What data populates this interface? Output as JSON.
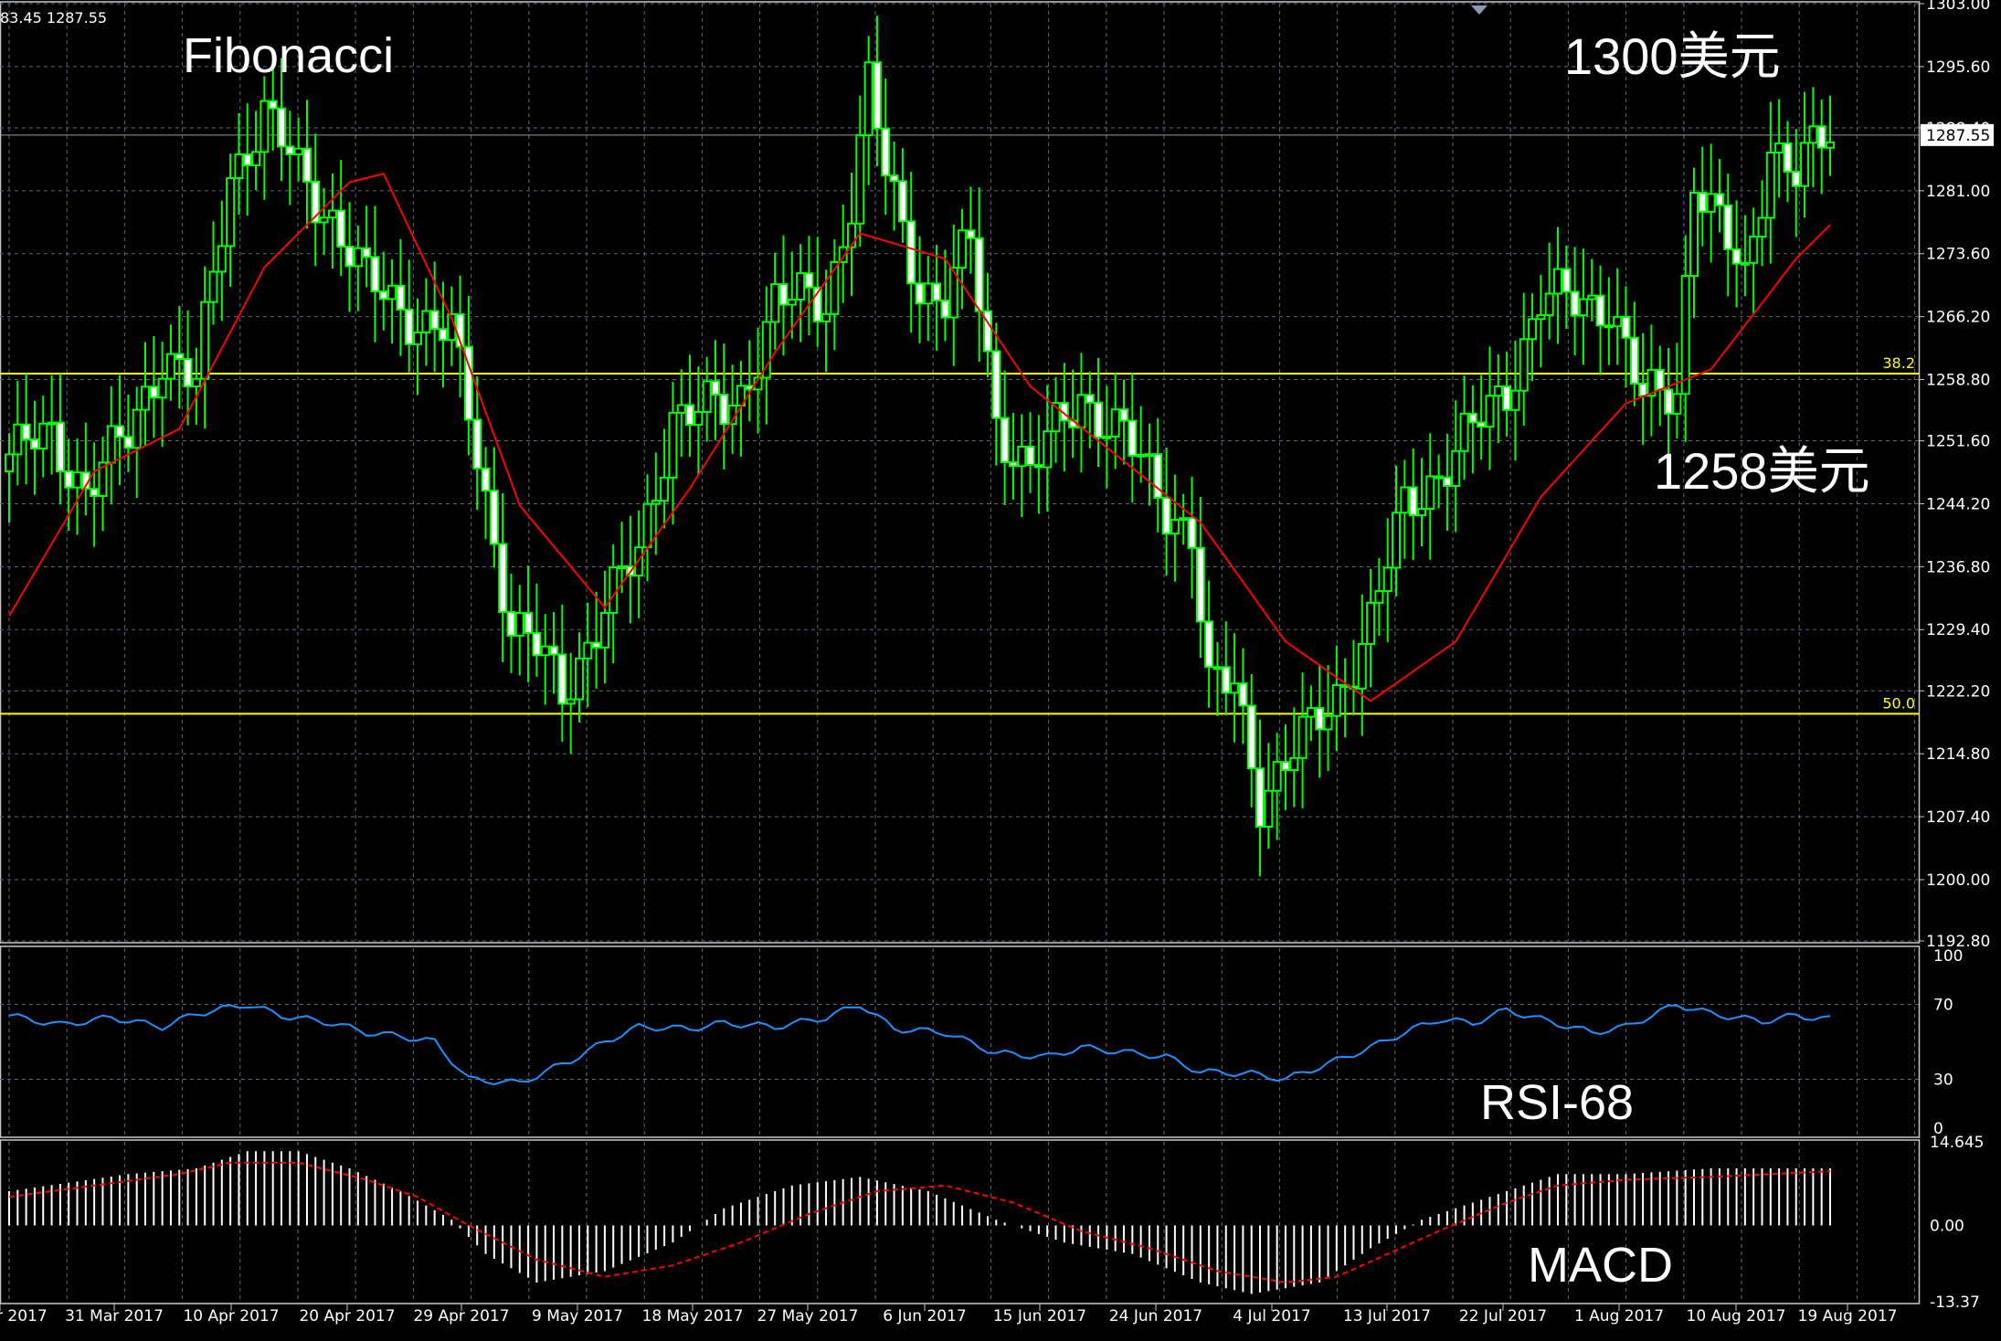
{
  "header": {
    "ohlc_text": "83.45 1287.55"
  },
  "annotations": {
    "fibonacci": "Fibonacci",
    "resistance": "1300美元",
    "support": "1258美元",
    "rsi": "RSI-68",
    "macd": "MACD"
  },
  "colors": {
    "background": "#000000",
    "grid": "#5a6a7a",
    "bull_candle": "#00ff00",
    "bear_candle_body": "#ffffff",
    "moving_average": "#ff0000",
    "fibonacci": "#ffff00",
    "rsi_line": "#1e90ff",
    "macd_hist": "#ffffff",
    "macd_signal": "#ff0000",
    "axis_text": "#ffffff"
  },
  "chart_data": [
    {
      "type": "candlestick",
      "pane": "price",
      "ylim": [
        1192.8,
        1303.0
      ],
      "y_ticks": [
        "1303.00",
        "1295.60",
        "1288.40",
        "1281.00",
        "1273.60",
        "1266.20",
        "1258.80",
        "1251.60",
        "1244.20",
        "1236.80",
        "1229.40",
        "1222.20",
        "1214.80",
        "1207.40",
        "1200.00",
        "1192.80"
      ],
      "current_price": "1287.55",
      "x_labels": [
        "r 2017",
        "31 Mar 2017",
        "10 Apr 2017",
        "20 Apr 2017",
        "29 Apr 2017",
        "9 May 2017",
        "18 May 2017",
        "27 May 2017",
        "6 Jun 2017",
        "15 Jun 2017",
        "24 Jun 2017",
        "4 Jul 2017",
        "13 Jul 2017",
        "22 Jul 2017",
        "1 Aug 2017",
        "10 Aug 2017",
        "19 Aug 2017"
      ],
      "fibonacci_levels": [
        {
          "label": "38.2",
          "price": 1259.5
        },
        {
          "label": "50.0",
          "price": 1219.5
        }
      ],
      "moving_average_anchors": [
        [
          0,
          1231
        ],
        [
          10,
          1248
        ],
        [
          20,
          1253
        ],
        [
          30,
          1272
        ],
        [
          40,
          1282
        ],
        [
          44,
          1283
        ],
        [
          52,
          1266
        ],
        [
          60,
          1244
        ],
        [
          70,
          1232
        ],
        [
          80,
          1246
        ],
        [
          90,
          1262
        ],
        [
          100,
          1276
        ],
        [
          110,
          1273
        ],
        [
          120,
          1258
        ],
        [
          130,
          1250
        ],
        [
          140,
          1242
        ],
        [
          150,
          1228
        ],
        [
          160,
          1221
        ],
        [
          170,
          1228
        ],
        [
          180,
          1245
        ],
        [
          190,
          1256
        ],
        [
          200,
          1260
        ],
        [
          210,
          1273
        ],
        [
          214,
          1277
        ]
      ],
      "candle_anchors": [
        [
          0,
          1250
        ],
        [
          5,
          1252
        ],
        [
          9,
          1246
        ],
        [
          14,
          1252
        ],
        [
          18,
          1262
        ],
        [
          22,
          1258
        ],
        [
          26,
          1283
        ],
        [
          30,
          1290
        ],
        [
          34,
          1283
        ],
        [
          38,
          1278
        ],
        [
          42,
          1270
        ],
        [
          48,
          1266
        ],
        [
          52,
          1264
        ],
        [
          55,
          1250
        ],
        [
          59,
          1230
        ],
        [
          62,
          1227
        ],
        [
          65,
          1222
        ],
        [
          70,
          1232
        ],
        [
          74,
          1238
        ],
        [
          78,
          1255
        ],
        [
          84,
          1255
        ],
        [
          86,
          1257
        ],
        [
          90,
          1268
        ],
        [
          96,
          1268
        ],
        [
          99,
          1280
        ],
        [
          101,
          1293
        ],
        [
          103,
          1283
        ],
        [
          107,
          1270
        ],
        [
          110,
          1268
        ],
        [
          113,
          1275
        ],
        [
          116,
          1254
        ],
        [
          120,
          1248
        ],
        [
          126,
          1257
        ],
        [
          131,
          1252
        ],
        [
          136,
          1244
        ],
        [
          139,
          1241
        ],
        [
          141,
          1222
        ],
        [
          144,
          1223
        ],
        [
          147,
          1210
        ],
        [
          152,
          1216
        ],
        [
          156,
          1222
        ],
        [
          160,
          1230
        ],
        [
          164,
          1244
        ],
        [
          170,
          1250
        ],
        [
          176,
          1258
        ],
        [
          180,
          1268
        ],
        [
          185,
          1268
        ],
        [
          188,
          1268
        ],
        [
          192,
          1256
        ],
        [
          196,
          1258
        ],
        [
          198,
          1283
        ],
        [
          204,
          1270
        ],
        [
          207,
          1287
        ],
        [
          210,
          1283
        ],
        [
          214,
          1287.55
        ]
      ]
    },
    {
      "type": "line",
      "pane": "rsi",
      "name": "RSI-68",
      "ylim": [
        0,
        100
      ],
      "y_ticks": [
        100,
        70,
        30,
        0
      ],
      "value_anchors": [
        [
          0,
          64
        ],
        [
          6,
          59
        ],
        [
          12,
          63
        ],
        [
          18,
          58
        ],
        [
          22,
          65
        ],
        [
          28,
          70
        ],
        [
          32,
          64
        ],
        [
          38,
          60
        ],
        [
          42,
          55
        ],
        [
          46,
          53
        ],
        [
          50,
          50
        ],
        [
          54,
          30
        ],
        [
          60,
          28
        ],
        [
          66,
          40
        ],
        [
          70,
          50
        ],
        [
          74,
          58
        ],
        [
          80,
          57
        ],
        [
          84,
          60
        ],
        [
          90,
          58
        ],
        [
          96,
          63
        ],
        [
          100,
          70
        ],
        [
          104,
          57
        ],
        [
          110,
          55
        ],
        [
          116,
          44
        ],
        [
          122,
          42
        ],
        [
          126,
          47
        ],
        [
          132,
          44
        ],
        [
          136,
          42
        ],
        [
          140,
          34
        ],
        [
          146,
          33
        ],
        [
          150,
          30
        ],
        [
          156,
          40
        ],
        [
          160,
          47
        ],
        [
          164,
          55
        ],
        [
          168,
          62
        ],
        [
          172,
          60
        ],
        [
          176,
          67
        ],
        [
          180,
          62
        ],
        [
          186,
          55
        ],
        [
          190,
          58
        ],
        [
          196,
          70
        ],
        [
          200,
          65
        ],
        [
          206,
          61
        ],
        [
          210,
          64
        ],
        [
          214,
          62
        ]
      ]
    },
    {
      "type": "bar",
      "pane": "macd",
      "name": "MACD",
      "ylim": [
        -13.37,
        14.645
      ],
      "y_ticks": [
        "14.645",
        "0.00",
        "-13.37"
      ],
      "histogram_anchors": [
        [
          0,
          6
        ],
        [
          14,
          9
        ],
        [
          22,
          10
        ],
        [
          28,
          13
        ],
        [
          34,
          13
        ],
        [
          40,
          10
        ],
        [
          46,
          6
        ],
        [
          52,
          1
        ],
        [
          56,
          -5
        ],
        [
          62,
          -10
        ],
        [
          70,
          -8
        ],
        [
          78,
          -3
        ],
        [
          84,
          3
        ],
        [
          92,
          7
        ],
        [
          100,
          8.5
        ],
        [
          108,
          6
        ],
        [
          116,
          1
        ],
        [
          124,
          -3
        ],
        [
          132,
          -5
        ],
        [
          140,
          -10
        ],
        [
          146,
          -12
        ],
        [
          154,
          -10
        ],
        [
          160,
          -4
        ],
        [
          166,
          1
        ],
        [
          174,
          5
        ],
        [
          182,
          9
        ],
        [
          190,
          9
        ],
        [
          200,
          10
        ],
        [
          210,
          10
        ],
        [
          214,
          10
        ]
      ],
      "signal_anchors": [
        [
          0,
          5
        ],
        [
          10,
          7
        ],
        [
          20,
          9
        ],
        [
          26,
          11
        ],
        [
          34,
          11
        ],
        [
          42,
          8
        ],
        [
          48,
          5
        ],
        [
          54,
          0
        ],
        [
          62,
          -6
        ],
        [
          70,
          -9
        ],
        [
          78,
          -7
        ],
        [
          86,
          -3
        ],
        [
          94,
          2
        ],
        [
          102,
          6
        ],
        [
          110,
          7
        ],
        [
          118,
          4
        ],
        [
          126,
          -1
        ],
        [
          134,
          -4
        ],
        [
          142,
          -8
        ],
        [
          150,
          -10
        ],
        [
          156,
          -9
        ],
        [
          162,
          -5
        ],
        [
          168,
          -1
        ],
        [
          176,
          4
        ],
        [
          182,
          7
        ],
        [
          190,
          8
        ],
        [
          200,
          8.5
        ],
        [
          214,
          9.5
        ]
      ]
    }
  ]
}
